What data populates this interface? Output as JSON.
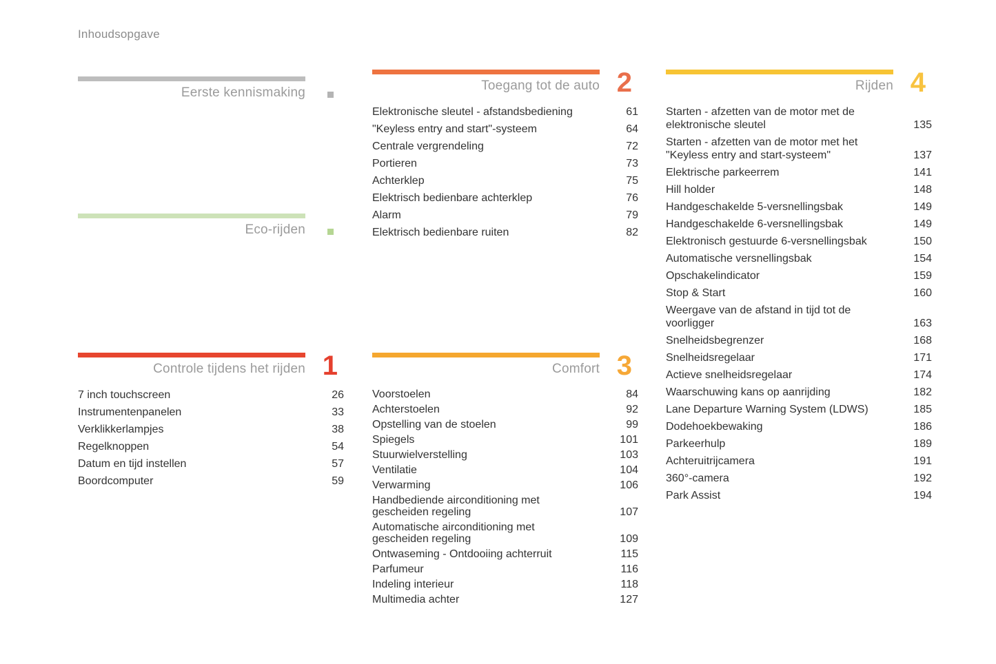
{
  "page": {
    "title": "Inhoudsopgave"
  },
  "sections": [
    {
      "key": "eerste-kennismaking",
      "title": "Eerste kennismaking",
      "number": null,
      "marker": "square",
      "bar_color": "#bdbdbd",
      "accent_color": "#b4b4b4",
      "entries": []
    },
    {
      "key": "eco-rijden",
      "title": "Eco-rijden",
      "number": null,
      "marker": "square",
      "bar_color": "#cde2b8",
      "accent_color": "#b5d693",
      "entries": []
    },
    {
      "key": "controle-tijdens-het-rijden",
      "title": "Controle tijdens het rijden",
      "number": "1",
      "marker": "number",
      "bar_color": "#e7462f",
      "accent_color": "#e5402e",
      "entries": [
        {
          "label": "7 inch touchscreen",
          "page": "26"
        },
        {
          "label": "Instrumentenpanelen",
          "page": "33"
        },
        {
          "label": "Verklikkerlampjes",
          "page": "38"
        },
        {
          "label": "Regelknoppen",
          "page": "54"
        },
        {
          "label": "Datum en tijd instellen",
          "page": "57"
        },
        {
          "label": "Boordcomputer",
          "page": "59"
        }
      ]
    },
    {
      "key": "toegang-tot-de-auto",
      "title": "Toegang tot de auto",
      "number": "2",
      "marker": "number",
      "bar_color": "#ee7340",
      "accent_color": "#e96f4b",
      "entries": [
        {
          "label": "Elektronische sleutel - afstandsbediening",
          "page": "61"
        },
        {
          "label": "\"Keyless entry and start\"-systeem",
          "page": "64"
        },
        {
          "label": "Centrale vergrendeling",
          "page": "72"
        },
        {
          "label": "Portieren",
          "page": "73"
        },
        {
          "label": "Achterklep",
          "page": "75"
        },
        {
          "label": "Elektrisch bedienbare achterklep",
          "page": "76"
        },
        {
          "label": "Alarm",
          "page": "79"
        },
        {
          "label": "Elektrisch bedienbare ruiten",
          "page": "82"
        }
      ]
    },
    {
      "key": "comfort",
      "title": "Comfort",
      "number": "3",
      "marker": "number",
      "bar_color": "#f5a72f",
      "accent_color": "#f6a837",
      "entries": [
        {
          "label": "Voorstoelen",
          "page": "84"
        },
        {
          "label": "Achterstoelen",
          "page": "92"
        },
        {
          "label": "Opstelling van de stoelen",
          "page": "99"
        },
        {
          "label": "Spiegels",
          "page": "101"
        },
        {
          "label": "Stuurwielverstelling",
          "page": "103"
        },
        {
          "label": "Ventilatie",
          "page": "104"
        },
        {
          "label": "Verwarming",
          "page": "106"
        },
        {
          "label": "Handbediende airconditioning met\ngescheiden regeling",
          "page": "107"
        },
        {
          "label": "Automatische airconditioning met\ngescheiden regeling",
          "page": "109"
        },
        {
          "label": "Ontwaseming - Ontdooiing achterruit",
          "page": "115"
        },
        {
          "label": "Parfumeur",
          "page": "116"
        },
        {
          "label": "Indeling interieur",
          "page": "118"
        },
        {
          "label": "Multimedia achter",
          "page": "127"
        }
      ]
    },
    {
      "key": "rijden",
      "title": "Rijden",
      "number": "4",
      "marker": "number",
      "bar_color": "#f7c434",
      "accent_color": "#f8c340",
      "entries": [
        {
          "label": "Starten - afzetten van de motor met de\nelektronische sleutel",
          "page": "135"
        },
        {
          "label": "Starten - afzetten van de motor met het\n\"Keyless entry and start-systeem\"",
          "page": "137"
        },
        {
          "label": "Elektrische parkeerrem",
          "page": "141"
        },
        {
          "label": "Hill holder",
          "page": "148"
        },
        {
          "label": "Handgeschakelde 5-versnellingsbak",
          "page": "149"
        },
        {
          "label": "Handgeschakelde 6-versnellingsbak",
          "page": "149"
        },
        {
          "label": "Elektronisch gestuurde 6-versnellingsbak",
          "page": "150"
        },
        {
          "label": "Automatische versnellingsbak",
          "page": "154"
        },
        {
          "label": "Opschakelindicator",
          "page": "159"
        },
        {
          "label": "Stop & Start",
          "page": "160"
        },
        {
          "label": "Weergave van de afstand in tijd tot de\nvoorligger",
          "page": "163"
        },
        {
          "label": "Snelheidsbegrenzer",
          "page": "168"
        },
        {
          "label": "Snelheidsregelaar",
          "page": "171"
        },
        {
          "label": "Actieve snelheidsregelaar",
          "page": "174"
        },
        {
          "label": "Waarschuwing kans op aanrijding",
          "page": "182"
        },
        {
          "label": "Lane Departure Warning System (LDWS)",
          "page": "185"
        },
        {
          "label": "Dodehoekbewaking",
          "page": "186"
        },
        {
          "label": "Parkeerhulp",
          "page": "189"
        },
        {
          "label": "Achteruitrijcamera",
          "page": "191"
        },
        {
          "label": "360°-camera",
          "page": "192"
        },
        {
          "label": "Park Assist",
          "page": "194"
        }
      ]
    }
  ]
}
